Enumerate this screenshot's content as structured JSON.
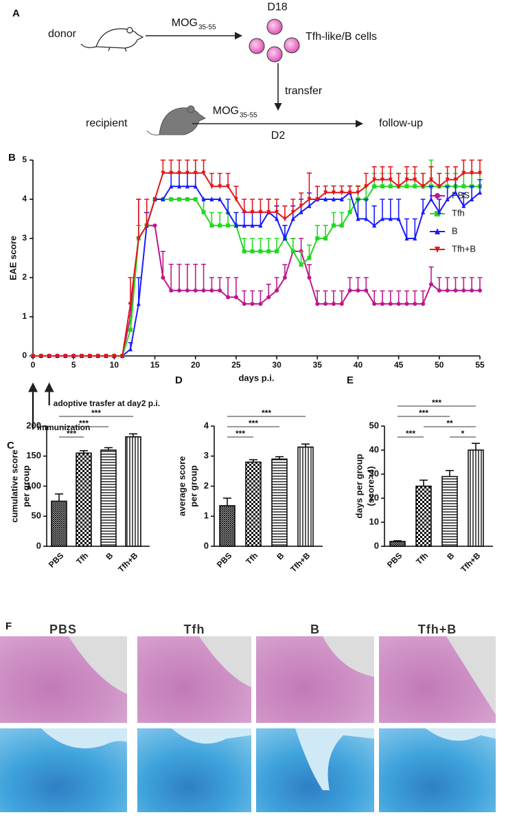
{
  "panel_labels": [
    "A",
    "B",
    "C",
    "D",
    "E",
    "F"
  ],
  "diagram": {
    "donor": "donor",
    "antigen": "MOG",
    "antigen_sub": "35-55",
    "day_harvest": "D18",
    "cells": "Tfh-like/B cells",
    "transfer": "transfer",
    "recipient": "recipient",
    "antigen2": "MOG",
    "antigen2_sub": "35-55",
    "day_transfer": "D2",
    "follow_up": "follow-up"
  },
  "histology": {
    "groups": [
      "PBS",
      "Tfh",
      "B",
      "Tfh+B"
    ]
  },
  "chart_data": [
    {
      "type": "line",
      "ylabel": "EAE score",
      "xlabel": "days p.i.",
      "x": [
        0,
        1,
        2,
        3,
        4,
        5,
        6,
        7,
        8,
        9,
        10,
        11,
        12,
        13,
        14,
        15,
        16,
        17,
        18,
        19,
        20,
        21,
        22,
        23,
        24,
        25,
        26,
        27,
        28,
        29,
        30,
        31,
        32,
        33,
        34,
        35,
        36,
        37,
        38,
        39,
        40,
        41,
        42,
        43,
        44,
        45,
        46,
        47,
        48,
        49,
        50,
        51,
        52,
        53,
        54,
        55
      ],
      "xlim": [
        0,
        55
      ],
      "xticks": [
        0,
        5,
        10,
        15,
        20,
        25,
        30,
        35,
        40,
        45,
        50,
        55
      ],
      "ylim": [
        0,
        5
      ],
      "yticks": [
        0,
        1,
        2,
        3,
        4,
        5
      ],
      "legend": "right",
      "series": [
        {
          "name": "PBS",
          "color": "#c0168c",
          "marker": "circle",
          "values": [
            0,
            0,
            0,
            0,
            0,
            0,
            0,
            0,
            0,
            0,
            0,
            0,
            1,
            3,
            3.33,
            3.33,
            2,
            1.67,
            1.67,
            1.67,
            1.67,
            1.67,
            1.67,
            1.67,
            1.5,
            1.5,
            1.33,
            1.33,
            1.33,
            1.5,
            1.67,
            2,
            2.67,
            2.67,
            2,
            1.33,
            1.33,
            1.33,
            1.33,
            1.67,
            1.67,
            1.67,
            1.33,
            1.33,
            1.33,
            1.33,
            1.33,
            1.33,
            1.33,
            1.83,
            1.67,
            1.67,
            1.67,
            1.67,
            1.67,
            1.67
          ],
          "errors": [
            0,
            0,
            0,
            0,
            0,
            0,
            0,
            0,
            0,
            0,
            0,
            0,
            0.33,
            1,
            0.33,
            0,
            0.67,
            0.67,
            0.67,
            0.67,
            0.67,
            0.67,
            0.33,
            0.33,
            0.5,
            0.5,
            0.33,
            0.33,
            0.33,
            0.33,
            0.33,
            0.33,
            0.33,
            0.33,
            0.33,
            0.33,
            0.33,
            0.33,
            0.33,
            0.33,
            0.33,
            0.33,
            0.33,
            0.33,
            0.33,
            0.33,
            0.33,
            0.33,
            0.33,
            0.44,
            0.33,
            0.33,
            0.33,
            0.33,
            0.33,
            0.33
          ]
        },
        {
          "name": "Tfh",
          "color": "#22d822",
          "marker": "square",
          "values": [
            0,
            0,
            0,
            0,
            0,
            0,
            0,
            0,
            0,
            0,
            0,
            0,
            0.67,
            3,
            3.33,
            4,
            4,
            4,
            4,
            4,
            4,
            3.67,
            3.33,
            3.33,
            3.33,
            3.33,
            2.67,
            2.67,
            2.67,
            2.67,
            2.67,
            3,
            2.67,
            2.33,
            2.5,
            3,
            3,
            3.33,
            3.33,
            3.67,
            4,
            4,
            4.33,
            4.33,
            4.33,
            4.33,
            4.33,
            4.33,
            4.33,
            4.33,
            4.33,
            4.33,
            4.33,
            4.33,
            4.33,
            4.33
          ],
          "errors": [
            0,
            0,
            0,
            0,
            0,
            0,
            0,
            0,
            0,
            0,
            0,
            0,
            0.33,
            0.33,
            0.33,
            0,
            0,
            0,
            0,
            0,
            0,
            0.33,
            0.33,
            0.33,
            0.33,
            0.33,
            0.33,
            0.33,
            0.33,
            0.33,
            0.33,
            0.33,
            0.33,
            0.33,
            0.33,
            0.33,
            0.33,
            0.33,
            0.33,
            0.33,
            0.33,
            0.33,
            0.33,
            0.33,
            0.33,
            0.33,
            0.33,
            0.33,
            0.33,
            0.67,
            0.33,
            0.33,
            0.33,
            0.33,
            0.33,
            0.33
          ]
        },
        {
          "name": "B",
          "color": "#1a1aff",
          "marker": "triangle",
          "values": [
            0,
            0,
            0,
            0,
            0,
            0,
            0,
            0,
            0,
            0,
            0,
            0,
            0.17,
            1.33,
            3.33,
            4,
            4,
            4.33,
            4.33,
            4.33,
            4.33,
            4,
            4,
            4,
            3.67,
            3.33,
            3.33,
            3.33,
            3.33,
            3.67,
            3.5,
            3,
            3.5,
            3.67,
            3.83,
            4,
            4,
            4,
            4,
            4.17,
            3.5,
            3.5,
            3.33,
            3.5,
            3.5,
            3.5,
            3,
            3,
            3.67,
            4,
            3.67,
            4,
            4.17,
            3.83,
            4,
            4.17
          ],
          "errors": [
            0,
            0,
            0,
            0,
            0,
            0,
            0,
            0,
            0,
            0,
            0,
            0,
            0.17,
            0.67,
            0.33,
            0,
            0,
            0.33,
            0.33,
            0.33,
            0.33,
            0,
            0,
            0,
            0.33,
            0.33,
            0.33,
            0.33,
            0.33,
            0.33,
            0.33,
            0.33,
            0.33,
            0.33,
            0.33,
            0,
            0,
            0,
            0,
            0.17,
            0.5,
            0.5,
            0.5,
            0.5,
            0.5,
            0.5,
            0.5,
            0.5,
            0.33,
            0.33,
            0.33,
            0.33,
            0.33,
            0.33,
            0.33,
            0.33
          ]
        },
        {
          "name": "Tfh+B",
          "color": "#e4141a",
          "marker": "triangle-down",
          "values": [
            0,
            0,
            0,
            0,
            0,
            0,
            0,
            0,
            0,
            0,
            0,
            0,
            1.33,
            3,
            3.33,
            4,
            4.67,
            4.67,
            4.67,
            4.67,
            4.67,
            4.67,
            4.33,
            4.33,
            4.33,
            4,
            3.67,
            3.67,
            3.67,
            3.67,
            3.67,
            3.5,
            3.67,
            3.83,
            4,
            4,
            4.17,
            4.17,
            4.17,
            4.17,
            4.17,
            4.33,
            4.5,
            4.5,
            4.5,
            4.33,
            4.5,
            4.5,
            4.33,
            4.5,
            4.33,
            4.5,
            4.5,
            4.67,
            4.67,
            4.67
          ],
          "errors": [
            0,
            0,
            0,
            0,
            0,
            0,
            0,
            0,
            0,
            0,
            0,
            0,
            0.67,
            1,
            0.67,
            0,
            0.33,
            0.33,
            0.33,
            0.33,
            0.33,
            0.33,
            0.33,
            0.33,
            0.33,
            0.33,
            0.33,
            0.33,
            0.33,
            0.33,
            0.33,
            0.33,
            0.33,
            0.33,
            0.67,
            0.33,
            0.17,
            0.17,
            0.17,
            0.17,
            0.17,
            0.33,
            0.33,
            0.33,
            0.33,
            0.33,
            0.33,
            0.33,
            0.33,
            0.33,
            0.33,
            0.33,
            0.33,
            0.33,
            0.33,
            0.33
          ]
        }
      ],
      "annotations": [
        {
          "text": "adoptive trasfer at day2 p.i.",
          "x": 2
        },
        {
          "text": "immunization",
          "x": 0
        }
      ]
    },
    {
      "type": "bar",
      "ylabel": [
        "cumulative score",
        "per group"
      ],
      "categories": [
        "PBS",
        "Tfh",
        "B",
        "Tfh+B"
      ],
      "values": [
        75,
        155,
        160,
        182
      ],
      "errors": [
        12,
        4,
        4,
        5
      ],
      "patterns": [
        "crosshatch",
        "checker",
        "hlines",
        "vlines"
      ],
      "ylim": [
        0,
        200
      ],
      "yticks": [
        0,
        50,
        100,
        150,
        200
      ],
      "comparisons": [
        {
          "pair": [
            0,
            1
          ],
          "label": "***"
        },
        {
          "pair": [
            0,
            2
          ],
          "label": "***"
        },
        {
          "pair": [
            0,
            3
          ],
          "label": "***"
        }
      ]
    },
    {
      "type": "bar",
      "ylabel": [
        "average score",
        "per group"
      ],
      "categories": [
        "PBS",
        "Tfh",
        "B",
        "Tfh+B"
      ],
      "values": [
        1.35,
        2.8,
        2.9,
        3.3
      ],
      "errors": [
        0.25,
        0.08,
        0.08,
        0.1
      ],
      "patterns": [
        "crosshatch",
        "checker",
        "hlines",
        "vlines"
      ],
      "ylim": [
        0,
        4
      ],
      "yticks": [
        0,
        1,
        2,
        3,
        4
      ],
      "comparisons": [
        {
          "pair": [
            0,
            1
          ],
          "label": "***"
        },
        {
          "pair": [
            0,
            2
          ],
          "label": "***"
        },
        {
          "pair": [
            0,
            3
          ],
          "label": "***"
        }
      ]
    },
    {
      "type": "bar",
      "ylabel": [
        "days per group",
        "(score>4)"
      ],
      "categories": [
        "PBS",
        "Tfh",
        "B",
        "Tfh+B"
      ],
      "values": [
        2,
        25,
        29,
        40
      ],
      "errors": [
        0.3,
        2.5,
        2.5,
        2.8
      ],
      "patterns": [
        "crosshatch",
        "checker",
        "hlines",
        "vlines"
      ],
      "ylim": [
        0,
        50
      ],
      "yticks": [
        0,
        10,
        20,
        30,
        40,
        50
      ],
      "comparisons": [
        {
          "pair": [
            0,
            1
          ],
          "label": "***"
        },
        {
          "pair": [
            1,
            3
          ],
          "label": "**"
        },
        {
          "pair": [
            0,
            2
          ],
          "label": "***"
        },
        {
          "pair": [
            2,
            3
          ],
          "label": "*"
        },
        {
          "pair": [
            0,
            3
          ],
          "label": "***"
        }
      ]
    }
  ]
}
